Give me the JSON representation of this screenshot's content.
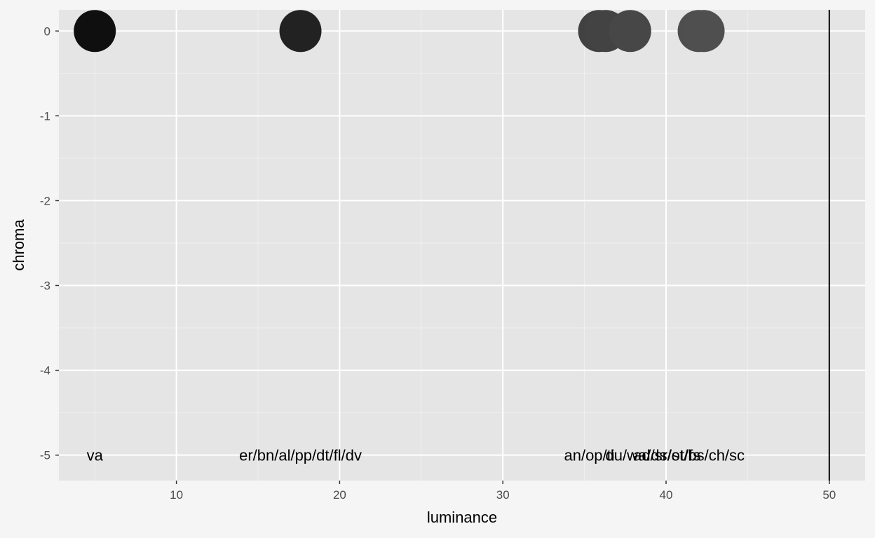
{
  "chart_data": {
    "type": "scatter",
    "xlabel": "luminance",
    "ylabel": "chroma",
    "xlim": [
      2.8,
      52.2
    ],
    "ylim": [
      -5.3,
      0.25
    ],
    "x_ticks": [
      10,
      20,
      30,
      40,
      50
    ],
    "x_minor": [
      5,
      15,
      25,
      35,
      45
    ],
    "y_ticks": [
      0,
      -1,
      -2,
      -3,
      -4,
      -5
    ],
    "y_minor": [
      -0.5,
      -1.5,
      -2.5,
      -3.5,
      -4.5
    ],
    "grid": true,
    "reference_line": {
      "x": 50,
      "color": "#000000"
    },
    "points": [
      {
        "x": 5.0,
        "y": 0,
        "color": "#0f0f0f"
      },
      {
        "x": 17.6,
        "y": 0,
        "color": "#222222"
      },
      {
        "x": 35.9,
        "y": 0,
        "color": "#414141"
      },
      {
        "x": 36.3,
        "y": 0,
        "color": "#434343"
      },
      {
        "x": 37.8,
        "y": 0,
        "color": "#474747"
      },
      {
        "x": 42.0,
        "y": 0,
        "color": "#4e4e4e"
      },
      {
        "x": 42.3,
        "y": 0,
        "color": "#4f4f4f"
      }
    ],
    "labels": [
      {
        "text": "va",
        "x": 5.0,
        "y": -5
      },
      {
        "text": "er/bn/al/pp/dt/fl/dv",
        "x": 17.6,
        "y": -5
      },
      {
        "text": "an/op/ti",
        "x": 35.3,
        "y": -5
      },
      {
        "text": "du/wa/ds/ot/fs",
        "x": 39.2,
        "y": -5
      },
      {
        "text": "ad/sr/st/bs/ch/sc",
        "x": 41.4,
        "y": -5
      }
    ]
  },
  "colors": {
    "page_background": "#f5f5f5",
    "panel_background": "#e5e5e5",
    "grid_major": "#ffffff",
    "grid_minor": "#f0f0f0"
  }
}
